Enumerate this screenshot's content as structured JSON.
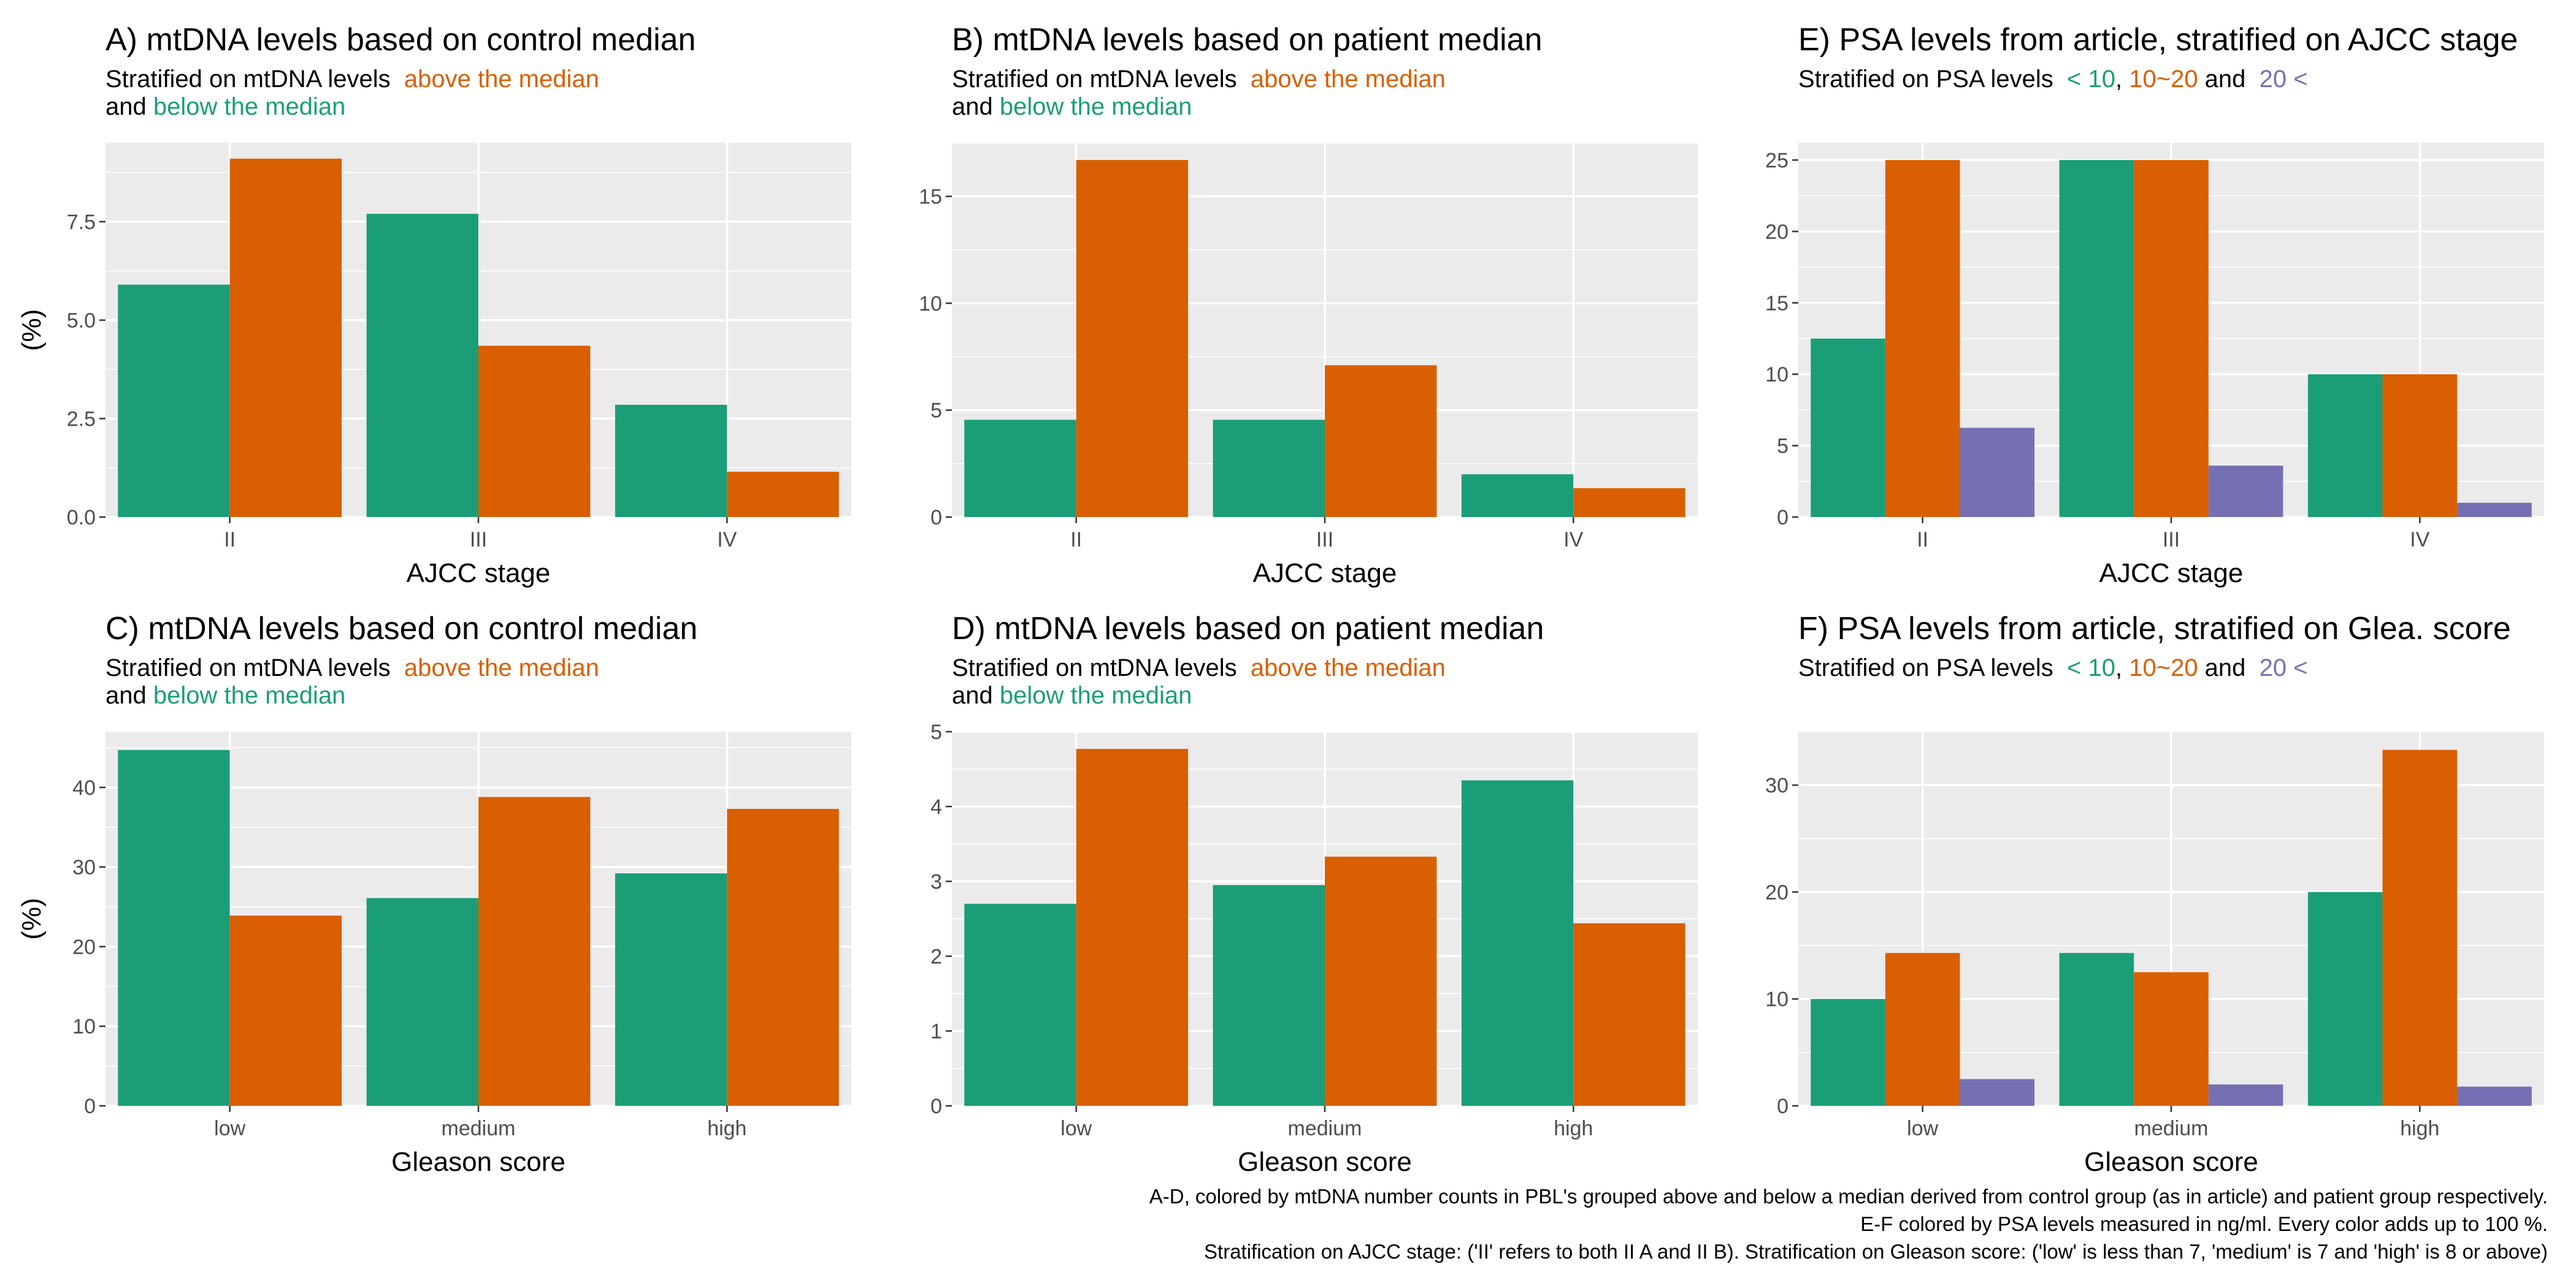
{
  "colors": {
    "green": "#1b9e77",
    "orange": "#d95f02",
    "purple": "#7570b3",
    "panel_bg": "#ebebeb",
    "grid": "#ffffff",
    "text": "#000000",
    "tick_text": "#4d4d4d"
  },
  "chart_data": [
    {
      "id": "A",
      "type": "bar",
      "title": "A) mtDNA levels based on control median",
      "subtitle_lines": [
        [
          {
            "text": "Stratified on mtDNA levels  ",
            "color": "text"
          },
          {
            "text": "above the median",
            "color": "orange"
          }
        ],
        [
          {
            "text": "and ",
            "color": "text"
          },
          {
            "text": "below the median",
            "color": "green"
          }
        ]
      ],
      "xlabel": "AJCC stage",
      "ylabel": "(%)",
      "categories": [
        "II",
        "III",
        "IV"
      ],
      "ylim": [
        0,
        9.5
      ],
      "yticks": [
        0,
        2.5,
        5,
        7.5
      ],
      "ytick_labels": [
        "0.0",
        "2.5",
        "5.0",
        "7.5"
      ],
      "series": [
        {
          "name": "below the median",
          "color": "green",
          "values": [
            5.9,
            7.7,
            2.85
          ]
        },
        {
          "name": "above the median",
          "color": "orange",
          "values": [
            9.1,
            4.35,
            1.15
          ]
        }
      ]
    },
    {
      "id": "B",
      "type": "bar",
      "title": "B) mtDNA levels based on patient median",
      "subtitle_lines": [
        [
          {
            "text": "Stratified on mtDNA levels  ",
            "color": "text"
          },
          {
            "text": "above the median",
            "color": "orange"
          }
        ],
        [
          {
            "text": "and ",
            "color": "text"
          },
          {
            "text": "below the median",
            "color": "green"
          }
        ]
      ],
      "xlabel": "AJCC stage",
      "ylabel": "",
      "categories": [
        "II",
        "III",
        "IV"
      ],
      "ylim": [
        0,
        17.5
      ],
      "yticks": [
        0,
        5,
        10,
        15
      ],
      "ytick_labels": [
        "0",
        "5",
        "10",
        "15"
      ],
      "series": [
        {
          "name": "below the median",
          "color": "green",
          "values": [
            4.55,
            4.55,
            2.0
          ]
        },
        {
          "name": "above the median",
          "color": "orange",
          "values": [
            16.7,
            7.1,
            1.35
          ]
        }
      ]
    },
    {
      "id": "E",
      "type": "bar",
      "title": "E) PSA levels from article, stratified on AJCC stage",
      "subtitle_lines": [
        [
          {
            "text": "Stratified on PSA levels  ",
            "color": "text"
          },
          {
            "text": "< 10",
            "color": "green"
          },
          {
            "text": ", ",
            "color": "text"
          },
          {
            "text": "10~20",
            "color": "orange"
          },
          {
            "text": " and  ",
            "color": "text"
          },
          {
            "text": "20 <",
            "color": "purple"
          }
        ]
      ],
      "xlabel": "AJCC stage",
      "ylabel": "",
      "categories": [
        "II",
        "III",
        "IV"
      ],
      "ylim": [
        0,
        26.2
      ],
      "yticks": [
        0,
        5,
        10,
        15,
        20,
        25
      ],
      "ytick_labels": [
        "0",
        "5",
        "10",
        "15",
        "20",
        "25"
      ],
      "series": [
        {
          "name": "< 10",
          "color": "green",
          "values": [
            12.5,
            25,
            10
          ]
        },
        {
          "name": "10~20",
          "color": "orange",
          "values": [
            25,
            25,
            10
          ]
        },
        {
          "name": "20 <",
          "color": "purple",
          "values": [
            6.25,
            3.6,
            1.0
          ]
        }
      ]
    },
    {
      "id": "C",
      "type": "bar",
      "title": "C) mtDNA levels based on control median",
      "subtitle_lines": [
        [
          {
            "text": "Stratified on mtDNA levels  ",
            "color": "text"
          },
          {
            "text": "above the median",
            "color": "orange"
          }
        ],
        [
          {
            "text": "and ",
            "color": "text"
          },
          {
            "text": "below the median",
            "color": "green"
          }
        ]
      ],
      "xlabel": "Gleason score",
      "ylabel": "(%)",
      "categories": [
        "low",
        "medium",
        "high"
      ],
      "ylim": [
        0,
        47
      ],
      "yticks": [
        0,
        10,
        20,
        30,
        40
      ],
      "ytick_labels": [
        "0",
        "10",
        "20",
        "30",
        "40"
      ],
      "series": [
        {
          "name": "below the median",
          "color": "green",
          "values": [
            44.7,
            26.1,
            29.2
          ]
        },
        {
          "name": "above the median",
          "color": "orange",
          "values": [
            23.9,
            38.8,
            37.3
          ]
        }
      ]
    },
    {
      "id": "D",
      "type": "bar",
      "title": "D) mtDNA levels based on patient median",
      "subtitle_lines": [
        [
          {
            "text": "Stratified on mtDNA levels  ",
            "color": "text"
          },
          {
            "text": "above the median",
            "color": "orange"
          }
        ],
        [
          {
            "text": "and ",
            "color": "text"
          },
          {
            "text": "below the median",
            "color": "green"
          }
        ]
      ],
      "xlabel": "Gleason score",
      "ylabel": "",
      "categories": [
        "low",
        "medium",
        "high"
      ],
      "ylim": [
        0,
        5
      ],
      "yticks": [
        0,
        1,
        2,
        3,
        4,
        5
      ],
      "ytick_labels": [
        "0",
        "1",
        "2",
        "3",
        "4",
        "5"
      ],
      "series": [
        {
          "name": "below the median",
          "color": "green",
          "values": [
            2.7,
            2.95,
            4.35
          ]
        },
        {
          "name": "above the median",
          "color": "orange",
          "values": [
            4.77,
            3.33,
            2.44
          ]
        }
      ]
    },
    {
      "id": "F",
      "type": "bar",
      "title": "F) PSA levels from article, stratified on Glea. score",
      "subtitle_lines": [
        [
          {
            "text": "Stratified on PSA levels  ",
            "color": "text"
          },
          {
            "text": "< 10",
            "color": "green"
          },
          {
            "text": ", ",
            "color": "text"
          },
          {
            "text": "10~20",
            "color": "orange"
          },
          {
            "text": " and  ",
            "color": "text"
          },
          {
            "text": "20 <",
            "color": "purple"
          }
        ]
      ],
      "xlabel": "Gleason score",
      "ylabel": "",
      "categories": [
        "low",
        "medium",
        "high"
      ],
      "ylim": [
        0,
        35
      ],
      "yticks": [
        0,
        10,
        20,
        30
      ],
      "ytick_labels": [
        "0",
        "10",
        "20",
        "30"
      ],
      "series": [
        {
          "name": "< 10",
          "color": "green",
          "values": [
            10,
            14.3,
            20
          ]
        },
        {
          "name": "10~20",
          "color": "orange",
          "values": [
            14.3,
            12.5,
            33.3
          ]
        },
        {
          "name": "20 <",
          "color": "purple",
          "values": [
            2.5,
            2.0,
            1.8
          ]
        }
      ]
    }
  ],
  "footnote": {
    "line1": "A-D, colored by mtDNA number counts in PBL's grouped above and below a median derived from control group (as in article) and patient group respectively.",
    "line2": "E-F colored by PSA levels measured in ng/ml. Every color adds up to 100 %.",
    "line3": "Stratification on AJCC stage: ('II' refers to both II A and II B). Stratification on Gleason score: ('low' is less than 7, 'medium' is 7 and 'high' is 8 or above)"
  }
}
